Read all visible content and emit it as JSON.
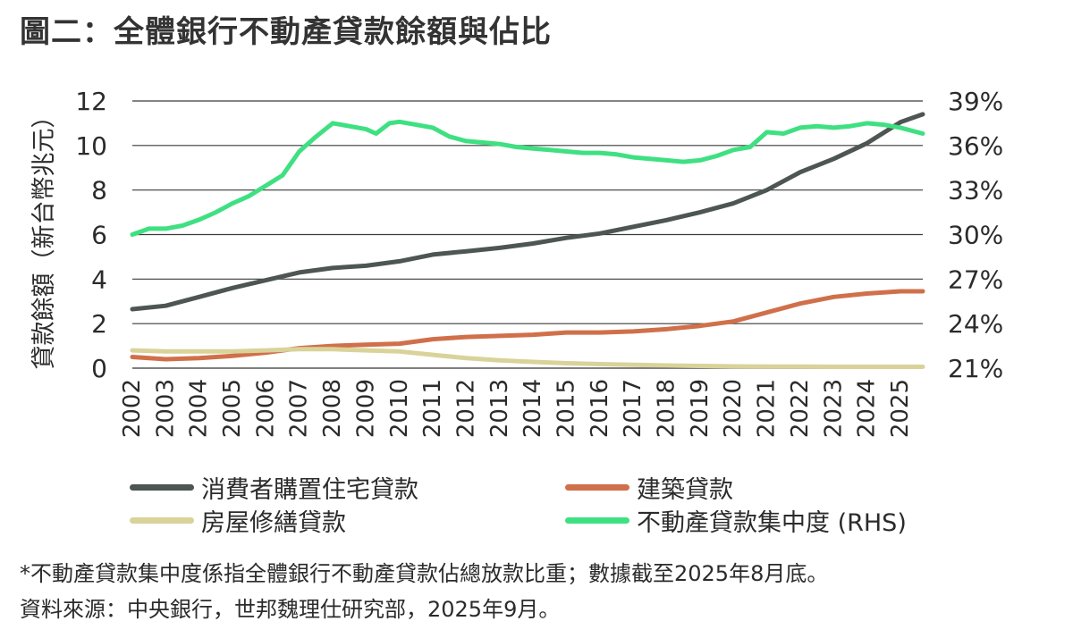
{
  "title": "圖二：全體銀行不動產貸款餘額與佔比",
  "footnote1": "*不動產貸款集中度係指全體銀行不動產貸款佔總放款比重；數據截至2025年8月底。",
  "footnote2": "資料來源：中央銀行，世邦魏理仕研究部，2025年9月。",
  "chart_data": {
    "type": "line",
    "title": "圖二：全體銀行不動產貸款餘額與佔比",
    "ylabel": "貸款餘額（新台幣兆元）",
    "ylim": [
      0,
      12
    ],
    "yticks": [
      "0",
      "2",
      "4",
      "6",
      "8",
      "10",
      "12"
    ],
    "y2lim": [
      21,
      39
    ],
    "y2ticks": [
      "21%",
      "24%",
      "27%",
      "30%",
      "33%",
      "36%",
      "39%"
    ],
    "xlim": [
      2002,
      2025.67
    ],
    "xticks": [
      "2002",
      "2003",
      "2004",
      "2005",
      "2006",
      "2007",
      "2008",
      "2009",
      "2010",
      "2011",
      "2012",
      "2013",
      "2014",
      "2015",
      "2016",
      "2017",
      "2018",
      "2019",
      "2020",
      "2021",
      "2022",
      "2023",
      "2024",
      "2025"
    ],
    "grid": true,
    "legend_position": "bottom",
    "series": [
      {
        "name": "消費者購置住宅貸款",
        "color": "#4d5652",
        "axis": "left",
        "x": [
          2002,
          2003,
          2004,
          2005,
          2006,
          2007,
          2008,
          2009,
          2010,
          2011,
          2012,
          2013,
          2014,
          2015,
          2016,
          2017,
          2018,
          2019,
          2020,
          2021,
          2022,
          2023,
          2024,
          2025,
          2025.67
        ],
        "y": [
          2.65,
          2.8,
          3.2,
          3.6,
          3.95,
          4.3,
          4.5,
          4.6,
          4.8,
          5.1,
          5.25,
          5.4,
          5.6,
          5.85,
          6.05,
          6.35,
          6.65,
          7.0,
          7.4,
          8.0,
          8.8,
          9.4,
          10.1,
          11.05,
          11.4
        ]
      },
      {
        "name": "建築貸款",
        "color": "#d0704a",
        "axis": "left",
        "x": [
          2002,
          2003,
          2004,
          2005,
          2006,
          2007,
          2008,
          2009,
          2010,
          2011,
          2012,
          2013,
          2014,
          2015,
          2016,
          2017,
          2018,
          2019,
          2020,
          2021,
          2022,
          2023,
          2024,
          2025,
          2025.67
        ],
        "y": [
          0.5,
          0.4,
          0.45,
          0.55,
          0.7,
          0.9,
          1.0,
          1.05,
          1.1,
          1.3,
          1.4,
          1.45,
          1.5,
          1.6,
          1.6,
          1.65,
          1.75,
          1.9,
          2.1,
          2.5,
          2.9,
          3.2,
          3.35,
          3.45,
          3.45
        ]
      },
      {
        "name": "房屋修繕貸款",
        "color": "#d9d39a",
        "axis": "left",
        "x": [
          2002,
          2003,
          2004,
          2005,
          2006,
          2007,
          2008,
          2009,
          2010,
          2011,
          2012,
          2013,
          2014,
          2015,
          2016,
          2017,
          2018,
          2019,
          2020,
          2021,
          2022,
          2023,
          2024,
          2025,
          2025.67
        ],
        "y": [
          0.8,
          0.75,
          0.75,
          0.75,
          0.8,
          0.85,
          0.85,
          0.8,
          0.75,
          0.6,
          0.45,
          0.35,
          0.28,
          0.22,
          0.18,
          0.15,
          0.12,
          0.1,
          0.08,
          0.07,
          0.07,
          0.06,
          0.06,
          0.06,
          0.06
        ]
      },
      {
        "name": "不動產貸款集中度 (RHS)",
        "color": "#3fe082",
        "axis": "right",
        "x": [
          2002,
          2002.5,
          2003,
          2003.5,
          2004,
          2004.5,
          2005,
          2005.5,
          2006,
          2006.5,
          2007,
          2007.5,
          2008,
          2008.5,
          2009,
          2009.3,
          2009.7,
          2010,
          2010.5,
          2011,
          2011.5,
          2012,
          2012.5,
          2013,
          2013.5,
          2014,
          2014.5,
          2015,
          2015.5,
          2016,
          2016.5,
          2017,
          2017.5,
          2018,
          2018.5,
          2019,
          2019.5,
          2020,
          2020.5,
          2021,
          2021.5,
          2022,
          2022.5,
          2023,
          2023.5,
          2024,
          2024.5,
          2025,
          2025.67
        ],
        "y": [
          30.0,
          30.4,
          30.4,
          30.6,
          31.0,
          31.5,
          32.1,
          32.6,
          33.3,
          34.0,
          35.6,
          36.6,
          37.5,
          37.3,
          37.1,
          36.8,
          37.5,
          37.6,
          37.4,
          37.2,
          36.6,
          36.3,
          36.2,
          36.1,
          35.9,
          35.8,
          35.7,
          35.6,
          35.5,
          35.5,
          35.4,
          35.2,
          35.1,
          35.0,
          34.9,
          35.0,
          35.3,
          35.7,
          35.9,
          36.9,
          36.8,
          37.2,
          37.3,
          37.2,
          37.3,
          37.5,
          37.4,
          37.2,
          36.8
        ]
      }
    ]
  }
}
